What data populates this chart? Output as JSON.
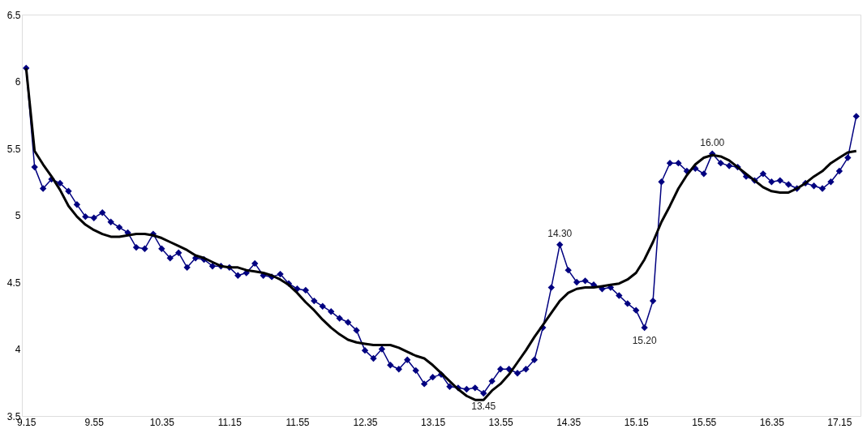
{
  "chart_data": {
    "type": "line",
    "categories": [
      "9.15",
      null,
      null,
      null,
      null,
      null,
      null,
      null,
      "9.55",
      null,
      null,
      null,
      null,
      null,
      null,
      null,
      "10.35",
      null,
      null,
      null,
      null,
      null,
      null,
      null,
      "11.15",
      null,
      null,
      null,
      null,
      null,
      null,
      null,
      "11.55",
      null,
      null,
      null,
      null,
      null,
      null,
      null,
      "12.35",
      null,
      null,
      null,
      null,
      null,
      null,
      null,
      "13.15",
      null,
      null,
      null,
      null,
      null,
      null,
      null,
      "13.55",
      null,
      null,
      null,
      null,
      null,
      null,
      null,
      "14.35",
      null,
      null,
      null,
      null,
      null,
      null,
      null,
      "15.15",
      null,
      null,
      null,
      null,
      null,
      null,
      null,
      "15.55",
      null,
      null,
      null,
      null,
      null,
      null,
      null,
      "16.35",
      null,
      null,
      null,
      null,
      null,
      null,
      null,
      "17.15",
      null,
      null
    ],
    "series": [
      {
        "color": "#000080",
        "marker": "diamond",
        "values": [
          6.1,
          5.36,
          5.2,
          5.27,
          5.24,
          5.18,
          5.08,
          4.99,
          4.98,
          5.02,
          4.95,
          4.91,
          4.87,
          4.76,
          4.75,
          4.86,
          4.75,
          4.68,
          4.72,
          4.61,
          4.68,
          4.67,
          4.62,
          4.62,
          4.61,
          4.55,
          4.57,
          4.64,
          4.55,
          4.54,
          4.56,
          4.49,
          4.45,
          4.44,
          4.36,
          4.32,
          4.28,
          4.23,
          4.2,
          4.14,
          3.99,
          3.93,
          4.0,
          3.88,
          3.85,
          3.92,
          3.84,
          3.74,
          3.79,
          3.81,
          3.72,
          3.71,
          3.7,
          3.71,
          3.67,
          3.76,
          3.85,
          3.85,
          3.82,
          3.85,
          3.92,
          4.16,
          4.46,
          4.78,
          4.59,
          4.5,
          4.51,
          4.48,
          4.45,
          4.46,
          4.4,
          4.34,
          4.29,
          4.16,
          4.36,
          5.25,
          5.39,
          5.39,
          5.33,
          5.35,
          5.31,
          5.46,
          5.39,
          5.37,
          5.36,
          5.29,
          5.26,
          5.31,
          5.25,
          5.26,
          5.23,
          5.2,
          5.24,
          5.22,
          5.2,
          5.25,
          5.33,
          5.43,
          5.74
        ]
      },
      {
        "color": "#000000",
        "marker": "none",
        "values": [
          6.1,
          5.48,
          5.38,
          5.29,
          5.19,
          5.07,
          4.99,
          4.93,
          4.89,
          4.86,
          4.84,
          4.84,
          4.85,
          4.86,
          4.86,
          4.85,
          4.83,
          4.8,
          4.77,
          4.74,
          4.7,
          4.68,
          4.65,
          4.62,
          4.61,
          4.61,
          4.59,
          4.58,
          4.57,
          4.55,
          4.52,
          4.48,
          4.42,
          4.35,
          4.29,
          4.22,
          4.16,
          4.11,
          4.07,
          4.05,
          4.04,
          4.03,
          4.03,
          4.03,
          4.01,
          3.98,
          3.95,
          3.93,
          3.88,
          3.82,
          3.76,
          3.7,
          3.65,
          3.62,
          3.62,
          3.69,
          3.74,
          3.81,
          3.9,
          3.99,
          4.09,
          4.18,
          4.27,
          4.36,
          4.42,
          4.45,
          4.46,
          4.46,
          4.47,
          4.48,
          4.49,
          4.52,
          4.57,
          4.67,
          4.8,
          4.95,
          5.07,
          5.2,
          5.3,
          5.38,
          5.43,
          5.45,
          5.44,
          5.41,
          5.36,
          5.31,
          5.26,
          5.21,
          5.18,
          5.17,
          5.17,
          5.2,
          5.24,
          5.29,
          5.33,
          5.39,
          5.43,
          5.47,
          5.48
        ]
      }
    ],
    "ylim": [
      3.5,
      6.5
    ],
    "yticks": [
      3.5,
      4,
      4.5,
      5,
      5.5,
      6,
      6.5
    ],
    "annotations": [
      {
        "text": "13.45",
        "y": 3.67
      },
      {
        "text": "14.30",
        "y": 4.78
      },
      {
        "text": "15.20",
        "y": 4.16
      },
      {
        "text": "16.00",
        "y": 5.46
      }
    ],
    "grid": false,
    "line_style": "solid"
  }
}
